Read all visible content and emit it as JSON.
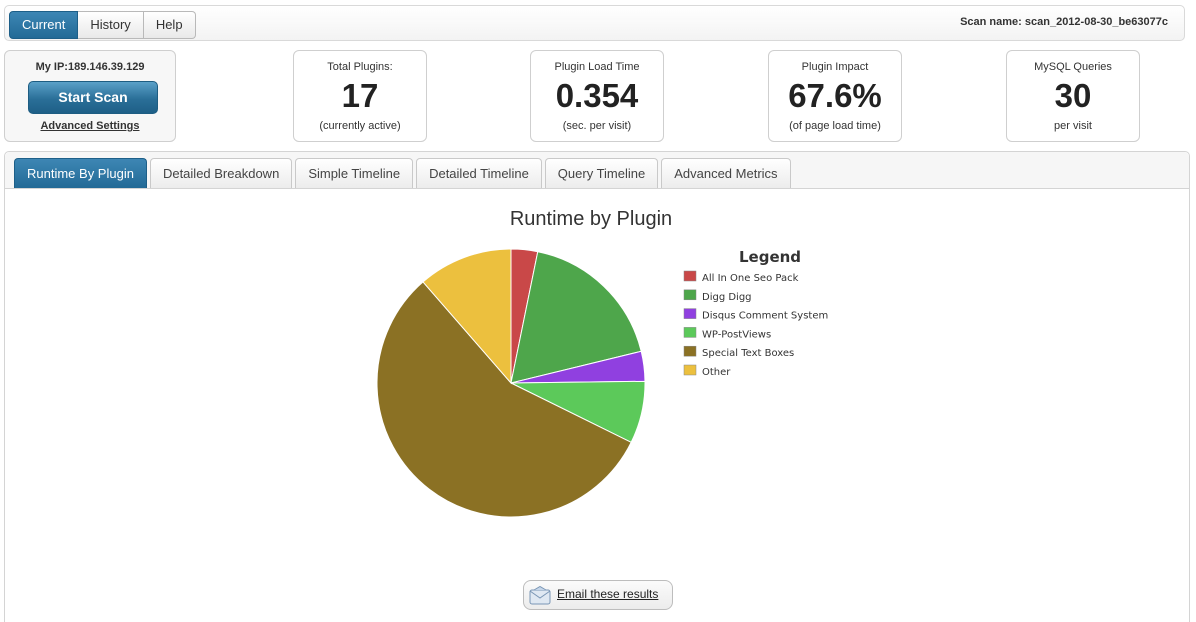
{
  "nav": {
    "tabs": [
      {
        "label": "Current",
        "active": true
      },
      {
        "label": "History",
        "active": false
      },
      {
        "label": "Help",
        "active": false
      }
    ],
    "scan_name": "Scan name: scan_2012-08-30_be63077c"
  },
  "ip_box": {
    "ip_label": "My IP:",
    "ip_value": "189.146.39.129",
    "start_button": "Start Scan",
    "advanced_link": "Advanced Settings"
  },
  "stats": [
    {
      "label": "Total Plugins:",
      "value": "17",
      "sub": "(currently active)"
    },
    {
      "label": "Plugin Load Time",
      "value": "0.354",
      "sub": "(sec. per visit)"
    },
    {
      "label": "Plugin Impact",
      "value": "67.6%",
      "sub": "(of page load time)"
    },
    {
      "label": "MySQL Queries",
      "value": "30",
      "sub": "per visit"
    }
  ],
  "panel_tabs": [
    {
      "label": "Runtime By Plugin",
      "active": true
    },
    {
      "label": "Detailed Breakdown",
      "active": false
    },
    {
      "label": "Simple Timeline",
      "active": false
    },
    {
      "label": "Detailed Timeline",
      "active": false
    },
    {
      "label": "Query Timeline",
      "active": false
    },
    {
      "label": "Advanced Metrics",
      "active": false
    }
  ],
  "chart_data": {
    "type": "pie",
    "title": "Runtime by Plugin",
    "legend_title": "Legend",
    "legend_position": "right",
    "slices": [
      {
        "label": "All In One Seo Pack",
        "value": 3.2,
        "color": "#c94848"
      },
      {
        "label": "Digg Digg",
        "value": 18.0,
        "color": "#4ea64b"
      },
      {
        "label": "Disqus Comment System",
        "value": 3.6,
        "color": "#9040e0"
      },
      {
        "label": "WP-PostViews",
        "value": 7.5,
        "color": "#5cc95a"
      },
      {
        "label": "Special Text Boxes",
        "value": 56.3,
        "color": "#8b7124"
      },
      {
        "label": "Other",
        "value": 11.4,
        "color": "#ecc03e"
      }
    ]
  },
  "email_button": "Email these results"
}
